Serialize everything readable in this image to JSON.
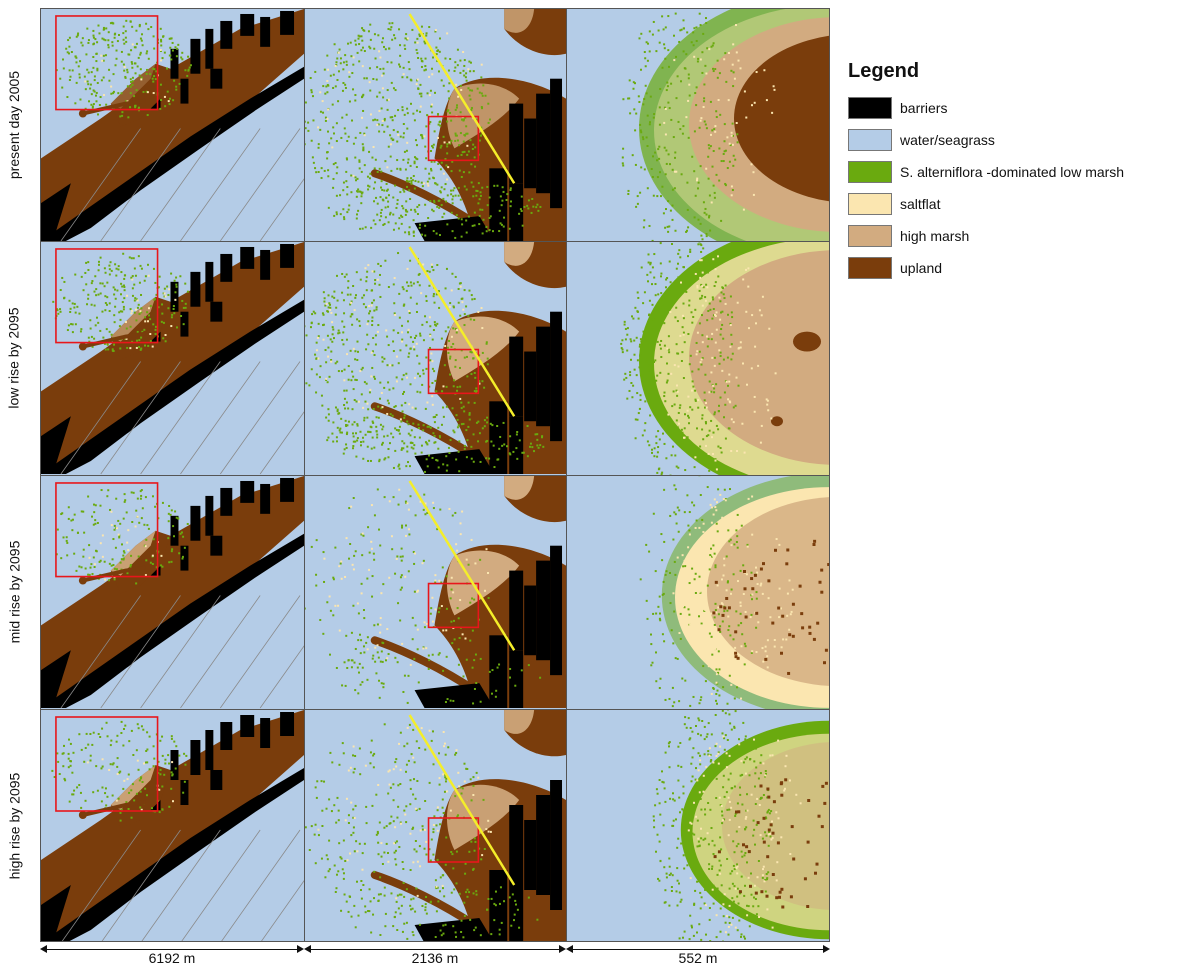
{
  "rows": [
    {
      "label": "present day 2005"
    },
    {
      "label": "low rise by 2095"
    },
    {
      "label": "mid rise by 2095"
    },
    {
      "label": "high rise by 2095"
    }
  ],
  "scales": [
    {
      "label": "6192 m"
    },
    {
      "label": "2136 m"
    },
    {
      "label": "552 m"
    }
  ],
  "legend": {
    "title": "Legend",
    "items": [
      {
        "label": "barriers",
        "color": "#000000"
      },
      {
        "label": "water/seagrass",
        "color": "#b4cce7"
      },
      {
        "label": "S. alterniflora -dominated low marsh",
        "color": "#6aaa0f"
      },
      {
        "label": "saltflat",
        "color": "#fbe6b0"
      },
      {
        "label": "high marsh",
        "color": "#d2ab80"
      },
      {
        "label": "upland",
        "color": "#7a3d0c"
      }
    ]
  },
  "marker_colors": {
    "extent_box": "#e8161b",
    "transect_line": "#f4ee2a"
  },
  "map_cells": [
    [
      {
        "low_marsh": 1.0,
        "saltflat": 0.2,
        "high_marsh": 0.3
      },
      {
        "low_marsh": 1.0,
        "saltflat": 0.4,
        "high_marsh": 0.8
      },
      {
        "low_marsh": 0.7,
        "saltflat": 0.4,
        "high_marsh": 1.0
      }
    ],
    [
      {
        "low_marsh": 0.9,
        "saltflat": 0.3,
        "high_marsh": 0.7
      },
      {
        "low_marsh": 0.9,
        "saltflat": 0.5,
        "high_marsh": 1.0
      },
      {
        "low_marsh": 1.0,
        "saltflat": 0.8,
        "high_marsh": 1.0
      }
    ],
    [
      {
        "low_marsh": 0.6,
        "saltflat": 0.3,
        "high_marsh": 0.9
      },
      {
        "low_marsh": 0.3,
        "saltflat": 0.5,
        "high_marsh": 1.0
      },
      {
        "low_marsh": 0.5,
        "saltflat": 1.0,
        "high_marsh": 0.8
      }
    ],
    [
      {
        "low_marsh": 0.6,
        "saltflat": 0.2,
        "high_marsh": 0.9
      },
      {
        "low_marsh": 0.5,
        "saltflat": 0.4,
        "high_marsh": 0.9
      },
      {
        "low_marsh": 1.0,
        "saltflat": 0.7,
        "high_marsh": 0.5
      }
    ]
  ]
}
